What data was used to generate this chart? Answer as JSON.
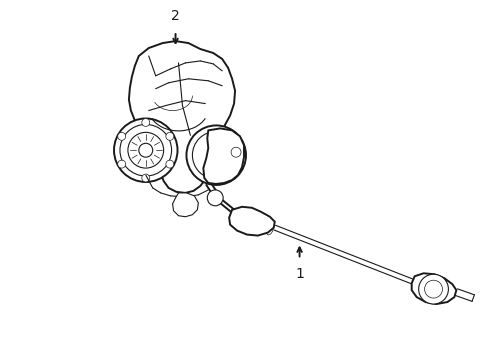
{
  "background_color": "#ffffff",
  "line_color": "#1a1a1a",
  "label_1": "1",
  "label_2": "2",
  "figsize": [
    4.89,
    3.6
  ],
  "dpi": 100,
  "lw_outer": 1.4,
  "lw_inner": 0.8,
  "lw_thin": 0.5
}
